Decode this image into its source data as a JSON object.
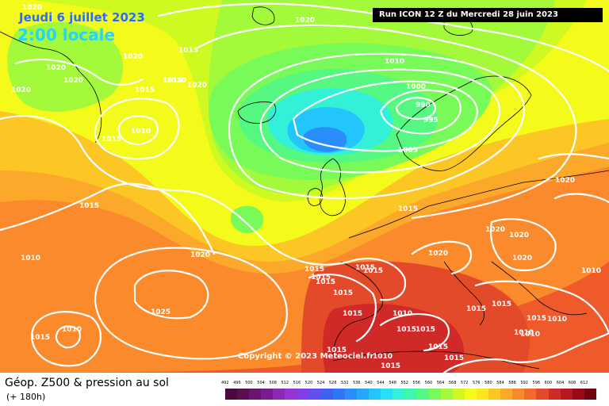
{
  "header": {
    "date": "Jeudi 6 juillet 2023",
    "time": "2:00 locale",
    "run": "Run ICON 12 Z du Mercredi 28 juin 2023"
  },
  "copyright": "Copyright © 2023 Meteociel.fr",
  "legend": {
    "title": "Géop. Z500 & pression au sol",
    "subtitle": "(+ 180h)",
    "scale_values": [
      "492",
      "496",
      "500",
      "504",
      "508",
      "512",
      "516",
      "520",
      "524",
      "528",
      "532",
      "536",
      "540",
      "544",
      "548",
      "552",
      "556",
      "560",
      "564",
      "568",
      "572",
      "576",
      "580",
      "584",
      "588",
      "592",
      "596",
      "600",
      "604",
      "608",
      "612"
    ],
    "scale_colors": [
      "#4b0a3c",
      "#5a0f50",
      "#6a1470",
      "#7a1c90",
      "#8c28b4",
      "#9636d2",
      "#8040e6",
      "#6050ee",
      "#4060f2",
      "#2f76f6",
      "#2a8efa",
      "#25a8fc",
      "#22c6fc",
      "#27e0f8",
      "#33f0d8",
      "#3ef6ac",
      "#55f880",
      "#78fa58",
      "#a2fa3a",
      "#cefa22",
      "#f4fa1a",
      "#fce61e",
      "#fcc624",
      "#fca82a",
      "#f88a2c",
      "#f06a2c",
      "#e24a2a",
      "#d02a28",
      "#b81620",
      "#980a16",
      "#700410"
    ]
  },
  "isobar_labels": [
    {
      "text": "1020"
    },
    {
      "text": "1020"
    },
    {
      "text": "1020"
    },
    {
      "text": "1015"
    },
    {
      "text": "1020"
    },
    {
      "text": "1020"
    },
    {
      "text": "1020"
    },
    {
      "text": "1020"
    },
    {
      "text": "1015"
    },
    {
      "text": "1015"
    },
    {
      "text": "1015"
    },
    {
      "text": "1020"
    },
    {
      "text": "1010"
    },
    {
      "text": "1015"
    },
    {
      "text": "1010"
    },
    {
      "text": "1000"
    },
    {
      "text": "990"
    },
    {
      "text": "995"
    },
    {
      "text": "1005"
    },
    {
      "text": "1015"
    },
    {
      "text": "1015"
    },
    {
      "text": "1010"
    },
    {
      "text": "1020"
    },
    {
      "text": "1015"
    },
    {
      "text": "1015"
    },
    {
      "text": "1015"
    },
    {
      "text": "1015"
    },
    {
      "text": "1015"
    },
    {
      "text": "1025"
    },
    {
      "text": "1010"
    },
    {
      "text": "1015"
    },
    {
      "text": "1020"
    },
    {
      "text": "1020"
    },
    {
      "text": "1020"
    },
    {
      "text": "1020"
    },
    {
      "text": "1020"
    },
    {
      "text": "1010"
    },
    {
      "text": "1015"
    },
    {
      "text": "1015"
    },
    {
      "text": "1015"
    },
    {
      "text": "1010"
    },
    {
      "text": "1015"
    },
    {
      "text": "1015"
    },
    {
      "text": "1015"
    },
    {
      "text": "1015"
    },
    {
      "text": "1010"
    },
    {
      "text": "1015"
    },
    {
      "text": "1010"
    },
    {
      "text": "1015"
    },
    {
      "text": "1010"
    },
    {
      "text": "1015"
    },
    {
      "text": "1015"
    },
    {
      "text": "1010"
    }
  ]
}
